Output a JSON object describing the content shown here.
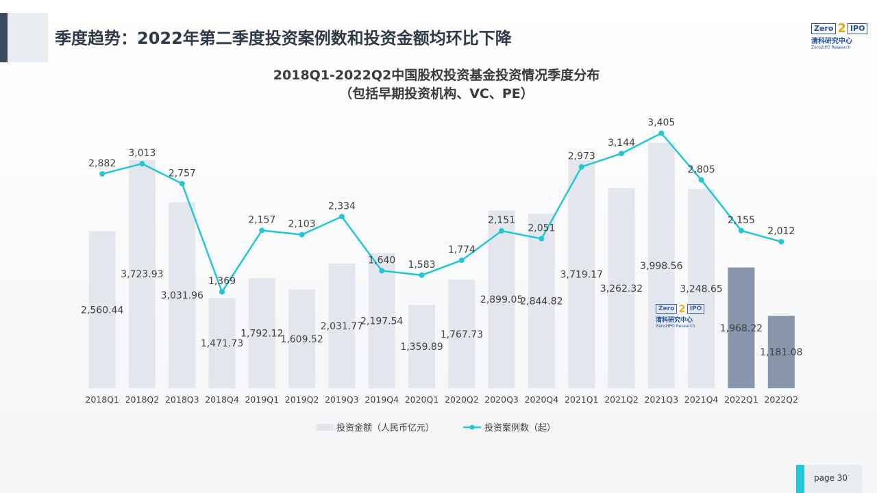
{
  "header": {
    "title": "季度趋势：2022年第二季度投资案例数和投资金额均环比下降"
  },
  "logo": {
    "word": "Zero",
    "two": "2",
    "word2": "IPO",
    "cn": "清科研究中心",
    "en": "Zero2IPO Research"
  },
  "footer": {
    "page_label": "page  30"
  },
  "colors": {
    "bar_normal": "#e3e6ec",
    "bar_highlight": "#8796ab",
    "line": "#22c7d3",
    "text": "#404040"
  },
  "chart_data": {
    "type": "bar",
    "title": "2018Q1-2022Q2中国股权投资基金投资情况季度分布",
    "subtitle": "（包括早期投资机构、VC、PE）",
    "categories": [
      "2018Q1",
      "2018Q2",
      "2018Q3",
      "2018Q4",
      "2019Q1",
      "2019Q2",
      "2019Q3",
      "2019Q4",
      "2020Q1",
      "2020Q2",
      "2020Q3",
      "2020Q4",
      "2021Q1",
      "2021Q2",
      "2021Q3",
      "2021Q4",
      "2022Q1",
      "2022Q2"
    ],
    "series": [
      {
        "name": "投资金额（人民币亿元）",
        "type": "bar",
        "values": [
          2560.44,
          3723.93,
          3031.96,
          1471.73,
          1792.12,
          1609.52,
          2031.77,
          2197.54,
          1359.89,
          1767.73,
          2899.05,
          2844.82,
          3719.17,
          3262.32,
          3998.56,
          3248.65,
          1968.22,
          1181.08
        ],
        "labels": [
          "2,560.44",
          "3,723.93",
          "3,031.96",
          "1,471.73",
          "1,792.12",
          "1,609.52",
          "2,031.77",
          "2,197.54",
          "1,359.89",
          "1,767.73",
          "2,899.05",
          "2,844.82",
          "3,719.17",
          "3,262.32",
          "3,998.56",
          "3,248.65",
          "1,968.22",
          "1,181.08"
        ],
        "highlight": [
          "2022Q1",
          "2022Q2"
        ]
      },
      {
        "name": "投资案例数（起）",
        "type": "line",
        "values": [
          2882,
          3013,
          2757,
          1369,
          2157,
          2103,
          2334,
          1640,
          1583,
          1774,
          2151,
          2051,
          2973,
          3144,
          3405,
          2805,
          2155,
          2012
        ],
        "labels": [
          "2,882",
          "3,013",
          "2,757",
          "1,369",
          "2,157",
          "2,103",
          "2,334",
          "1,640",
          "1,583",
          "1,774",
          "2,151",
          "2,051",
          "2,973",
          "3,144",
          "3,405",
          "2,805",
          "2,155",
          "2,012"
        ]
      }
    ],
    "legend": "bottom",
    "grid": false
  }
}
